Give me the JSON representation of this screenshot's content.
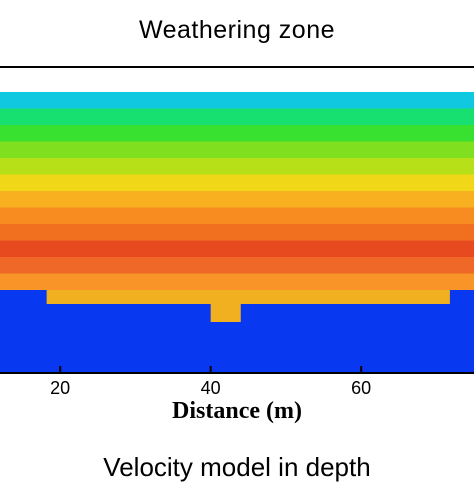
{
  "chart_data": {
    "type": "heatmap",
    "title": "Weathering zone",
    "xlabel": "Distance (m)",
    "xlim": [
      12,
      75
    ],
    "xticks": [
      20,
      40,
      60
    ],
    "rows": [
      {
        "color": "#10c8e0"
      },
      {
        "color": "#18e070"
      },
      {
        "color": "#38e030"
      },
      {
        "color": "#80e020"
      },
      {
        "color": "#b8e018"
      },
      {
        "color": "#f0d818"
      },
      {
        "color": "#f8b020"
      },
      {
        "color": "#f88c20"
      },
      {
        "color": "#f07020"
      },
      {
        "color": "#e84a20"
      },
      {
        "color": "#f06828"
      },
      {
        "color": "#f89428"
      }
    ],
    "basement_color": "#0838f0",
    "step_color": "#f0b020",
    "colors": {
      "axis": "#000000",
      "background": "#ffffff"
    }
  },
  "footer": {
    "caption": "Velocity model in depth"
  }
}
